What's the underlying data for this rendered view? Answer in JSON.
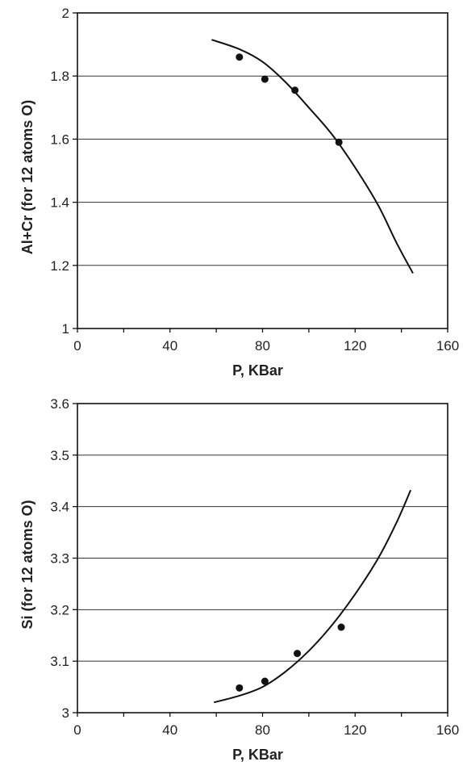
{
  "chart_data": [
    {
      "type": "scatter",
      "xlabel": "P, KBar",
      "ylabel": "Al+Cr (for 12 atoms O)",
      "xlim": [
        0,
        160
      ],
      "ylim": [
        1,
        2
      ],
      "xticks": [
        "0",
        "40",
        "80",
        "120",
        "160"
      ],
      "yticks": [
        "1",
        "1.2",
        "1.4",
        "1.6",
        "1.8",
        "2"
      ],
      "grid": "horizontal",
      "points": [
        {
          "x": 70,
          "y": 1.86
        },
        {
          "x": 81,
          "y": 1.79
        },
        {
          "x": 94,
          "y": 1.755
        },
        {
          "x": 113,
          "y": 1.59
        }
      ],
      "curve": [
        {
          "x": 58,
          "y": 1.915
        },
        {
          "x": 70,
          "y": 1.885
        },
        {
          "x": 80,
          "y": 1.845
        },
        {
          "x": 90,
          "y": 1.78
        },
        {
          "x": 100,
          "y": 1.7
        },
        {
          "x": 110,
          "y": 1.615
        },
        {
          "x": 120,
          "y": 1.51
        },
        {
          "x": 130,
          "y": 1.39
        },
        {
          "x": 138,
          "y": 1.27
        },
        {
          "x": 145,
          "y": 1.175
        }
      ]
    },
    {
      "type": "scatter",
      "xlabel": "P, KBar",
      "ylabel": "Si (for 12 atoms O)",
      "xlim": [
        0,
        160
      ],
      "ylim": [
        3,
        3.6
      ],
      "xticks": [
        "0",
        "40",
        "80",
        "120",
        "160"
      ],
      "yticks": [
        "3",
        "3.1",
        "3.2",
        "3.3",
        "3.4",
        "3.5",
        "3.6"
      ],
      "grid": "horizontal",
      "points": [
        {
          "x": 70,
          "y": 3.048
        },
        {
          "x": 81,
          "y": 3.061
        },
        {
          "x": 95,
          "y": 3.115
        },
        {
          "x": 114,
          "y": 3.166
        }
      ],
      "curve": [
        {
          "x": 59,
          "y": 3.02
        },
        {
          "x": 70,
          "y": 3.033
        },
        {
          "x": 80,
          "y": 3.05
        },
        {
          "x": 90,
          "y": 3.08
        },
        {
          "x": 100,
          "y": 3.12
        },
        {
          "x": 110,
          "y": 3.17
        },
        {
          "x": 120,
          "y": 3.23
        },
        {
          "x": 130,
          "y": 3.3
        },
        {
          "x": 138,
          "y": 3.37
        },
        {
          "x": 144,
          "y": 3.432
        }
      ]
    }
  ]
}
